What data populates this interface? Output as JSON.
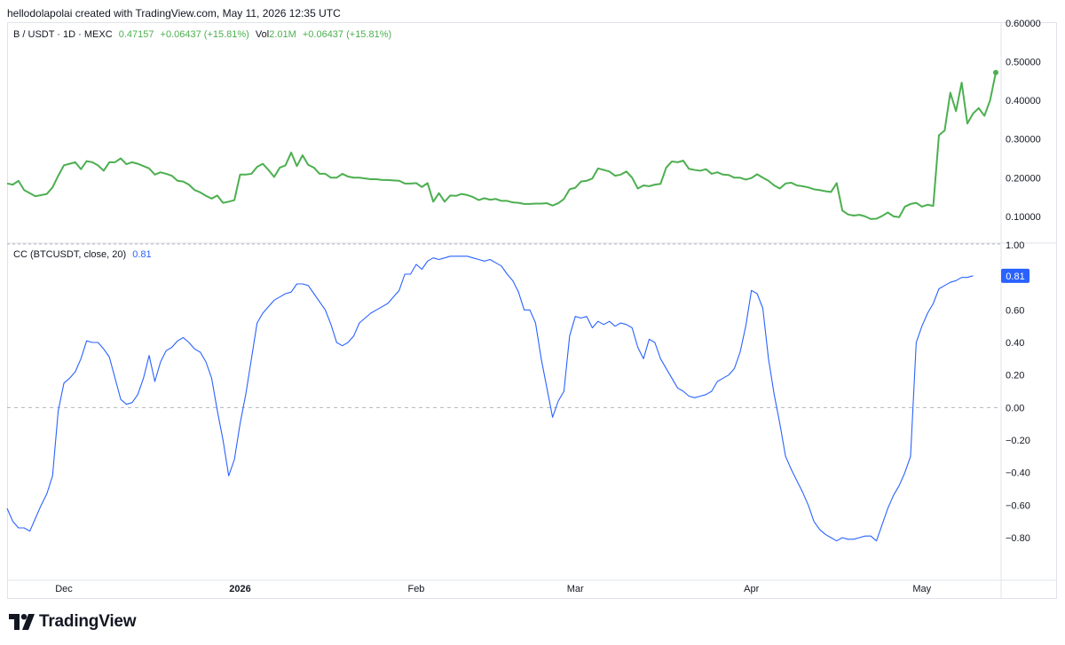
{
  "caption": "hellodolapolai created with TradingView.com, May 11, 2026 12:35 UTC",
  "brand": "TradingView",
  "colors": {
    "price": "#4caf50",
    "cc": "#2962ff",
    "grid": "#e0e3eb",
    "text": "#131722",
    "badge": "#2962ff"
  },
  "legend_price": {
    "symbol": "B / USDT · 1D · MEXC",
    "close": "0.47157",
    "change": "+0.06437 (+15.81%)",
    "vol_label": "Vol",
    "vol": "2.01M",
    "vol_change": "+0.06437 (+15.81%)"
  },
  "legend_cc": {
    "label": "CC (BTCUSDT, close, 20)",
    "value": "0.81",
    "badge": "0.81"
  },
  "chart_data": [
    {
      "type": "line",
      "title": "B / USDT · 1D · MEXC",
      "x_axis": {
        "labels": [
          "Dec",
          "2026",
          "Feb",
          "Mar",
          "Apr",
          "May"
        ],
        "label_index": [
          10,
          41,
          72,
          100,
          131,
          161
        ]
      },
      "y_ticks": [
        "0.60000",
        "0.50000",
        "0.40000",
        "0.30000",
        "0.20000",
        "0.10000"
      ],
      "ylim": [
        0.04,
        0.6
      ],
      "series": [
        {
          "values": [
            0.185,
            0.182,
            0.192,
            0.168,
            0.16,
            0.152,
            0.155,
            0.158,
            0.175,
            0.205,
            0.232,
            0.236,
            0.24,
            0.222,
            0.243,
            0.24,
            0.232,
            0.218,
            0.24,
            0.24,
            0.25,
            0.235,
            0.24,
            0.236,
            0.23,
            0.224,
            0.208,
            0.214,
            0.21,
            0.205,
            0.192,
            0.19,
            0.182,
            0.168,
            0.162,
            0.153,
            0.146,
            0.154,
            0.135,
            0.138,
            0.142,
            0.208,
            0.208,
            0.21,
            0.228,
            0.236,
            0.22,
            0.202,
            0.226,
            0.232,
            0.265,
            0.23,
            0.258,
            0.233,
            0.226,
            0.21,
            0.21,
            0.2,
            0.2,
            0.21,
            0.203,
            0.2,
            0.2,
            0.198,
            0.196,
            0.196,
            0.194,
            0.194,
            0.193,
            0.192,
            0.185,
            0.185,
            0.186,
            0.176,
            0.186,
            0.138,
            0.16,
            0.138,
            0.154,
            0.153,
            0.158,
            0.155,
            0.15,
            0.142,
            0.147,
            0.143,
            0.145,
            0.14,
            0.14,
            0.136,
            0.135,
            0.132,
            0.132,
            0.133,
            0.133,
            0.134,
            0.128,
            0.134,
            0.145,
            0.17,
            0.174,
            0.19,
            0.192,
            0.198,
            0.224,
            0.22,
            0.216,
            0.205,
            0.208,
            0.216,
            0.2,
            0.172,
            0.18,
            0.178,
            0.182,
            0.184,
            0.226,
            0.242,
            0.24,
            0.244,
            0.223,
            0.22,
            0.218,
            0.222,
            0.21,
            0.214,
            0.208,
            0.207,
            0.2,
            0.2,
            0.195,
            0.199,
            0.209,
            0.2,
            0.192,
            0.18,
            0.172,
            0.185,
            0.187,
            0.18,
            0.178,
            0.175,
            0.17,
            0.168,
            0.165,
            0.163,
            0.186,
            0.115,
            0.105,
            0.102,
            0.104,
            0.1,
            0.093,
            0.094,
            0.101,
            0.11,
            0.1,
            0.098,
            0.125,
            0.132,
            0.135,
            0.125,
            0.13,
            0.127,
            0.31,
            0.322,
            0.42,
            0.372,
            0.446,
            0.34,
            0.366,
            0.38,
            0.36,
            0.4,
            0.472
          ]
        }
      ]
    },
    {
      "type": "line",
      "title": "CC (BTCUSDT, close, 20)",
      "y_ticks": [
        "1.00",
        "0.60",
        "0.40",
        "0.20",
        "0.00",
        "−0.20",
        "−0.40",
        "−0.60",
        "−0.80"
      ],
      "ylim": [
        -1.04,
        1.0
      ],
      "zero_line": 0,
      "series": [
        {
          "values": [
            -0.62,
            -0.7,
            -0.74,
            -0.74,
            -0.76,
            -0.68,
            -0.6,
            -0.53,
            -0.42,
            -0.02,
            0.15,
            0.18,
            0.22,
            0.3,
            0.41,
            0.4,
            0.4,
            0.36,
            0.31,
            0.18,
            0.05,
            0.02,
            0.03,
            0.08,
            0.18,
            0.32,
            0.16,
            0.28,
            0.35,
            0.37,
            0.41,
            0.43,
            0.4,
            0.36,
            0.34,
            0.28,
            0.18,
            -0.02,
            -0.2,
            -0.42,
            -0.32,
            -0.1,
            0.08,
            0.3,
            0.52,
            0.58,
            0.62,
            0.66,
            0.68,
            0.7,
            0.71,
            0.76,
            0.76,
            0.75,
            0.7,
            0.65,
            0.6,
            0.51,
            0.4,
            0.38,
            0.4,
            0.44,
            0.52,
            0.55,
            0.58,
            0.6,
            0.62,
            0.64,
            0.68,
            0.72,
            0.82,
            0.82,
            0.88,
            0.85,
            0.9,
            0.92,
            0.91,
            0.92,
            0.93,
            0.93,
            0.93,
            0.93,
            0.92,
            0.91,
            0.9,
            0.91,
            0.89,
            0.87,
            0.82,
            0.78,
            0.71,
            0.6,
            0.6,
            0.52,
            0.3,
            0.12,
            -0.06,
            0.04,
            0.1,
            0.44,
            0.56,
            0.55,
            0.56,
            0.49,
            0.53,
            0.51,
            0.53,
            0.5,
            0.52,
            0.51,
            0.49,
            0.37,
            0.3,
            0.42,
            0.4,
            0.3,
            0.24,
            0.18,
            0.12,
            0.1,
            0.07,
            0.06,
            0.07,
            0.08,
            0.1,
            0.16,
            0.18,
            0.2,
            0.24,
            0.34,
            0.5,
            0.72,
            0.7,
            0.61,
            0.3,
            0.08,
            -0.1,
            -0.3,
            -0.38,
            -0.45,
            -0.52,
            -0.6,
            -0.7,
            -0.75,
            -0.78,
            -0.8,
            -0.82,
            -0.8,
            -0.81,
            -0.81,
            -0.8,
            -0.79,
            -0.79,
            -0.82,
            -0.72,
            -0.62,
            -0.54,
            -0.48,
            -0.4,
            -0.3,
            0.4,
            0.5,
            0.58,
            0.64,
            0.73,
            0.75,
            0.77,
            0.78,
            0.8,
            0.8,
            0.81
          ]
        }
      ]
    }
  ]
}
